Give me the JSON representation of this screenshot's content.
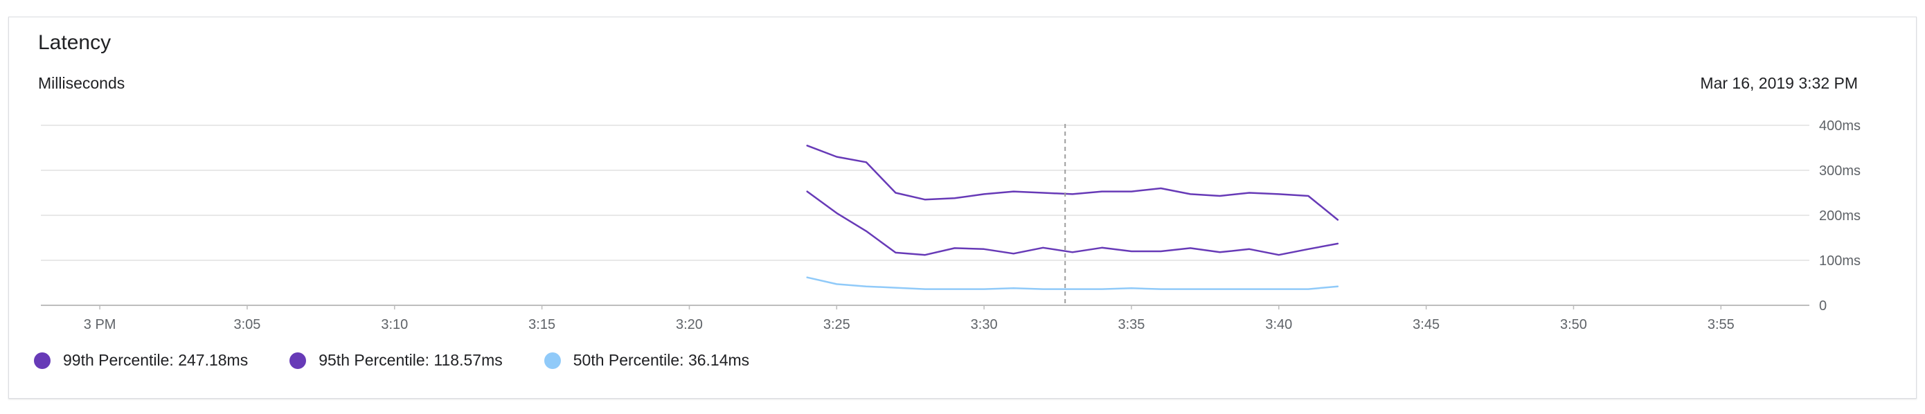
{
  "card": {
    "title": "Latency",
    "subtitle": "Milliseconds",
    "timestamp": "Mar 16, 2019 3:32 PM"
  },
  "legend": [
    {
      "label": "99th Percentile: 247.18ms",
      "color": "#673ab7"
    },
    {
      "label": "95th Percentile: 118.57ms",
      "color": "#673ab7"
    },
    {
      "label": "50th Percentile: 36.14ms",
      "color": "#90caf9"
    }
  ],
  "chart_data": {
    "type": "line",
    "xlabel": "",
    "ylabel": "Milliseconds",
    "x_range": [
      "2019-03-16 15:00",
      "2019-03-16 15:58"
    ],
    "xlim": [
      "2019-03-16 14:58",
      "2019-03-16 15:58"
    ],
    "ylim": [
      0,
      400
    ],
    "x_ticks": [
      "3 PM",
      "3:05",
      "3:10",
      "3:15",
      "3:20",
      "3:25",
      "3:30",
      "3:35",
      "3:40",
      "3:45",
      "3:50",
      "3:55"
    ],
    "x_tick_values": [
      "2019-03-16 15:00",
      "2019-03-16 15:05",
      "2019-03-16 15:10",
      "2019-03-16 15:15",
      "2019-03-16 15:20",
      "2019-03-16 15:25",
      "2019-03-16 15:30",
      "2019-03-16 15:35",
      "2019-03-16 15:40",
      "2019-03-16 15:45",
      "2019-03-16 15:50",
      "2019-03-16 15:55"
    ],
    "y_ticks": [
      "0",
      "100ms",
      "200ms",
      "300ms",
      "400ms"
    ],
    "y_tick_values": [
      0,
      100,
      200,
      300,
      400
    ],
    "grid": true,
    "y_axis_side": "right",
    "legend_position": "bottom-left",
    "cursor_x": "2019-03-16 15:32:45",
    "x": [
      "2019-03-16 15:24",
      "2019-03-16 15:25",
      "2019-03-16 15:26",
      "2019-03-16 15:27",
      "2019-03-16 15:28",
      "2019-03-16 15:29",
      "2019-03-16 15:30",
      "2019-03-16 15:31",
      "2019-03-16 15:32",
      "2019-03-16 15:33",
      "2019-03-16 15:34",
      "2019-03-16 15:35",
      "2019-03-16 15:36",
      "2019-03-16 15:37",
      "2019-03-16 15:38",
      "2019-03-16 15:39",
      "2019-03-16 15:40",
      "2019-03-16 15:41",
      "2019-03-16 15:42"
    ],
    "series": [
      {
        "name": "99th Percentile",
        "color": "#673ab7",
        "values": [
          355,
          330,
          318,
          250,
          235,
          238,
          247,
          253,
          250,
          247,
          253,
          253,
          260,
          247,
          243,
          250,
          247,
          243,
          190
        ]
      },
      {
        "name": "95th Percentile",
        "color": "#673ab7",
        "values": [
          253,
          205,
          165,
          117,
          112,
          127,
          125,
          115,
          128,
          118,
          128,
          120,
          120,
          127,
          118,
          125,
          112,
          125,
          137
        ]
      },
      {
        "name": "50th Percentile",
        "color": "#90caf9",
        "values": [
          62,
          47,
          42,
          39,
          36,
          36,
          36,
          38,
          36,
          36,
          36,
          38,
          36,
          36,
          36,
          36,
          36,
          36,
          42
        ]
      }
    ]
  }
}
